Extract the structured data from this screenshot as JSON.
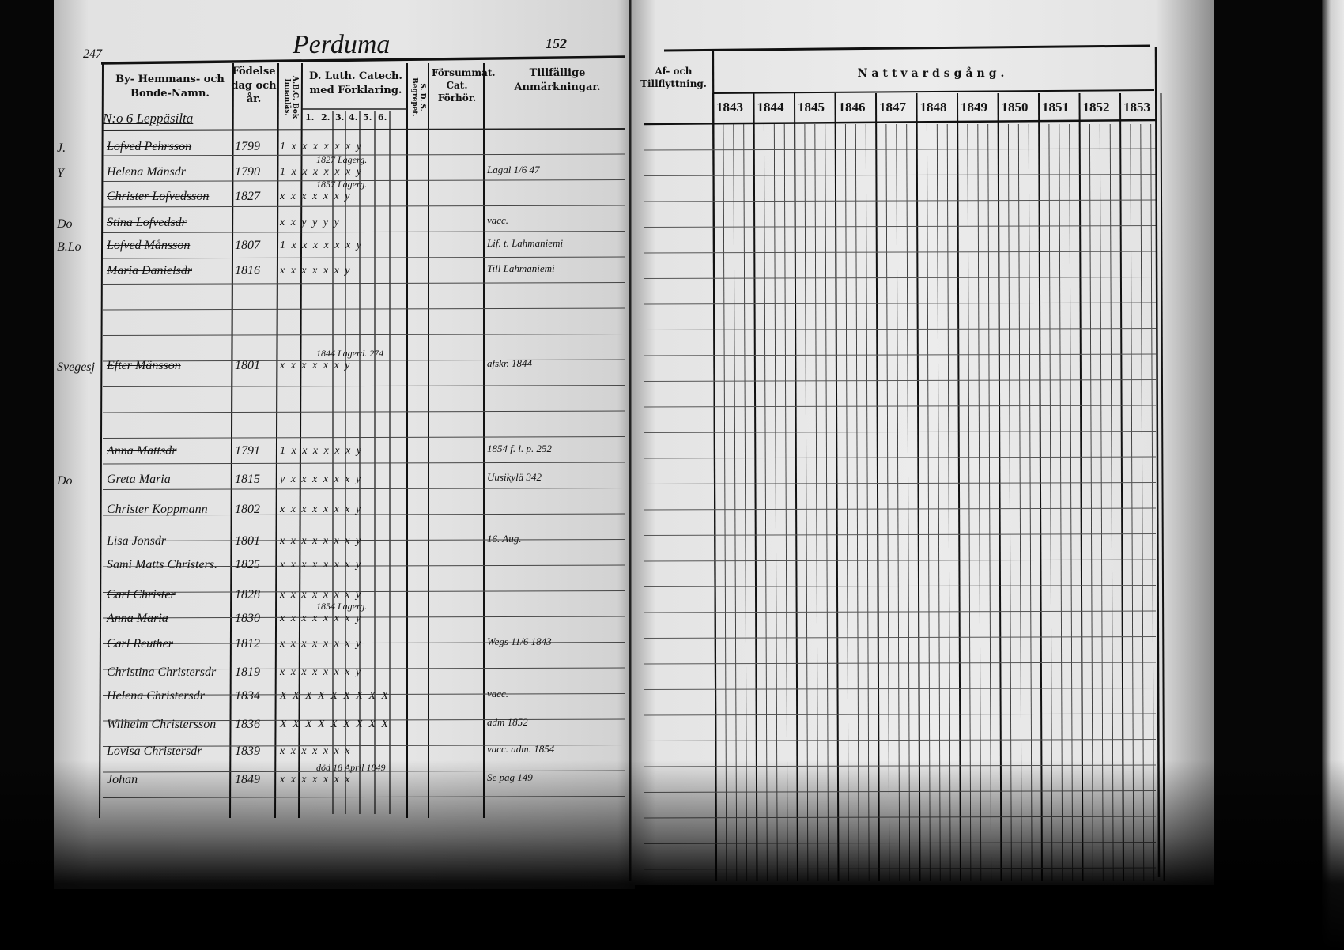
{
  "document": {
    "title": "Perduma",
    "left_page_number": "247",
    "right_page_number": "152",
    "left_columns": [
      "By- Hemmans- och Bonde-Namn.",
      "Födelse dag och år.",
      "A.B.C. Bok Innanläs.",
      "D. Luth. Catech. med Förklaring.",
      "S. D. S. Begrepet.",
      "Försummat. Cat. Förhör.",
      "Tillfällige Anmärkningar."
    ],
    "catechism_subcolumns": [
      "1.",
      "2.",
      "3.",
      "4.",
      "5.",
      "6."
    ],
    "right_columns": {
      "moving": "Af- och Tillflyttning.",
      "communion": "Nattvardsgång.",
      "years": [
        "1843",
        "1844",
        "1845",
        "1846",
        "1847",
        "1848",
        "1849",
        "1850",
        "1851",
        "1852",
        "1853"
      ]
    },
    "farm_heading": "N:o 6 Leppäsilta",
    "entries": [
      {
        "mark": "J.",
        "name": "Lofved Pehrsson",
        "birth": "1799",
        "cat": "1 x x x x x x y",
        "note": "",
        "remark": ""
      },
      {
        "mark": "Y",
        "name": "Helena Mänsdr",
        "birth": "1790",
        "cat": "1 x x x x x x y",
        "note": "1827 Lagerg.",
        "remark": "Lagal 1/6 47"
      },
      {
        "mark": "",
        "name": "Christer Lofvedsson",
        "birth": "1827",
        "cat": "x x x x x x y",
        "note": "1857 Lagerg.",
        "remark": ""
      },
      {
        "mark": "Do",
        "name": "Stina Lofvedsdr",
        "birth": "",
        "cat": "x x y y y y",
        "note": "",
        "remark": "vacc."
      },
      {
        "mark": "B.Lo",
        "name": "Lofved Månsson",
        "birth": "1807",
        "cat": "1 x x x x x x y",
        "note": "",
        "remark": "Lif. t. Lahmaniemi"
      },
      {
        "mark": "",
        "name": "Maria Danielsdr",
        "birth": "1816",
        "cat": "x x x x x x y",
        "note": "",
        "remark": "Till Lahmaniemi"
      },
      {
        "mark": "Svegesj",
        "name": "Efter Mänsson",
        "birth": "1801",
        "cat": "x x x x x x y",
        "note": "1844 Lagerd. 274",
        "remark": "afskr. 1844"
      },
      {
        "mark": "",
        "name": "Anna Mattsdr",
        "birth": "1791",
        "cat": "1 x x x x x x y",
        "note": "",
        "remark": "1854 f. l. p. 252"
      },
      {
        "mark": "Do",
        "name": "Greta Maria",
        "birth": "1815",
        "cat": "y x x x x x x y",
        "note": "",
        "remark": "Uusikylä 342"
      },
      {
        "mark": "",
        "name": "Christer Koppmann",
        "birth": "1802",
        "cat": "x x x x x x x y",
        "note": "",
        "remark": ""
      },
      {
        "mark": "",
        "name": "Lisa Jonsdr",
        "birth": "1801",
        "cat": "x x x x x x x y",
        "note": "",
        "remark": "16. Aug."
      },
      {
        "mark": "",
        "name": "Sami Matts Christers.",
        "birth": "1825",
        "cat": "x x x x x x x y",
        "note": "",
        "remark": ""
      },
      {
        "mark": "",
        "name": "Carl Christer",
        "birth": "1828",
        "cat": "x x x x x x x y",
        "note": "",
        "remark": ""
      },
      {
        "mark": "",
        "name": "Anna Maria",
        "birth": "1830",
        "cat": "x x x x x x x y",
        "note": "1854 Lagerg.",
        "remark": ""
      },
      {
        "mark": "",
        "name": "Carl Reuther",
        "birth": "1812",
        "cat": "x x x x x x x y",
        "note": "",
        "remark": "Wegs 11/6 1843"
      },
      {
        "mark": "",
        "name": "Christina Christersdr",
        "birth": "1819",
        "cat": "x x x x x x x y",
        "note": "",
        "remark": ""
      },
      {
        "mark": "",
        "name": "Helena Christersdr",
        "birth": "1834",
        "cat": "X X X X X X X X X",
        "note": "",
        "remark": "vacc."
      },
      {
        "mark": "",
        "name": "Wilhelm Christersson",
        "birth": "1836",
        "cat": "X X X X X X X X X",
        "note": "",
        "remark": "adm 1852"
      },
      {
        "mark": "",
        "name": "Lovisa Christersdr",
        "birth": "1839",
        "cat": "x x x x x x x",
        "note": "",
        "remark": "vacc. adm. 1854"
      },
      {
        "mark": "",
        "name": "Johan",
        "birth": "1849",
        "cat": "x x x x x x x",
        "note": "död 18 April 1849",
        "remark": "Se pag 149"
      }
    ]
  },
  "colors": {
    "paper": "#e4e4e4",
    "ink": "#111111",
    "background": "#060606"
  }
}
